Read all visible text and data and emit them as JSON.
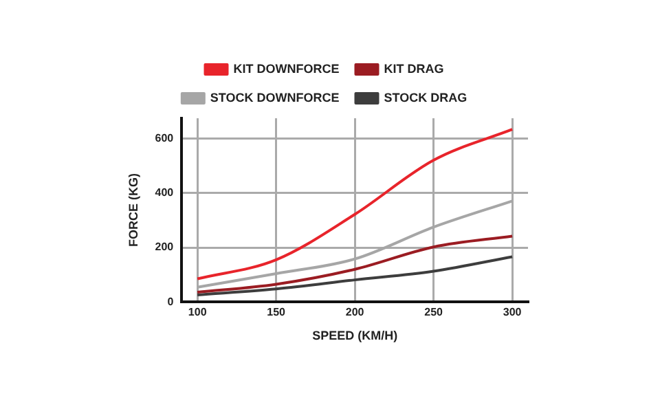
{
  "chart_data": {
    "type": "line",
    "xlabel": "SPEED (KM/H)",
    "ylabel": "FORCE (KG)",
    "x": [
      100,
      150,
      200,
      250,
      300
    ],
    "series": [
      {
        "name": "KIT DOWNFORCE",
        "color": "#e8242b",
        "values": [
          85,
          155,
          322,
          521,
          634
        ]
      },
      {
        "name": "KIT DRAG",
        "color": "#9b1c22",
        "values": [
          36,
          65,
          120,
          202,
          242
        ]
      },
      {
        "name": "STOCK DOWNFORCE",
        "color": "#a6a6a6",
        "values": [
          54,
          104,
          158,
          275,
          371
        ]
      },
      {
        "name": "STOCK DRAG",
        "color": "#3d3d3d",
        "values": [
          26,
          48,
          81,
          113,
          166
        ]
      }
    ],
    "xlim": [
      90,
      310
    ],
    "xticks": [
      100,
      150,
      200,
      250,
      300
    ],
    "ylim": [
      0,
      675
    ],
    "yticks": [
      0,
      200,
      400,
      600
    ],
    "grid": true,
    "legend": "top",
    "marker": "none",
    "line_style": "solid"
  }
}
